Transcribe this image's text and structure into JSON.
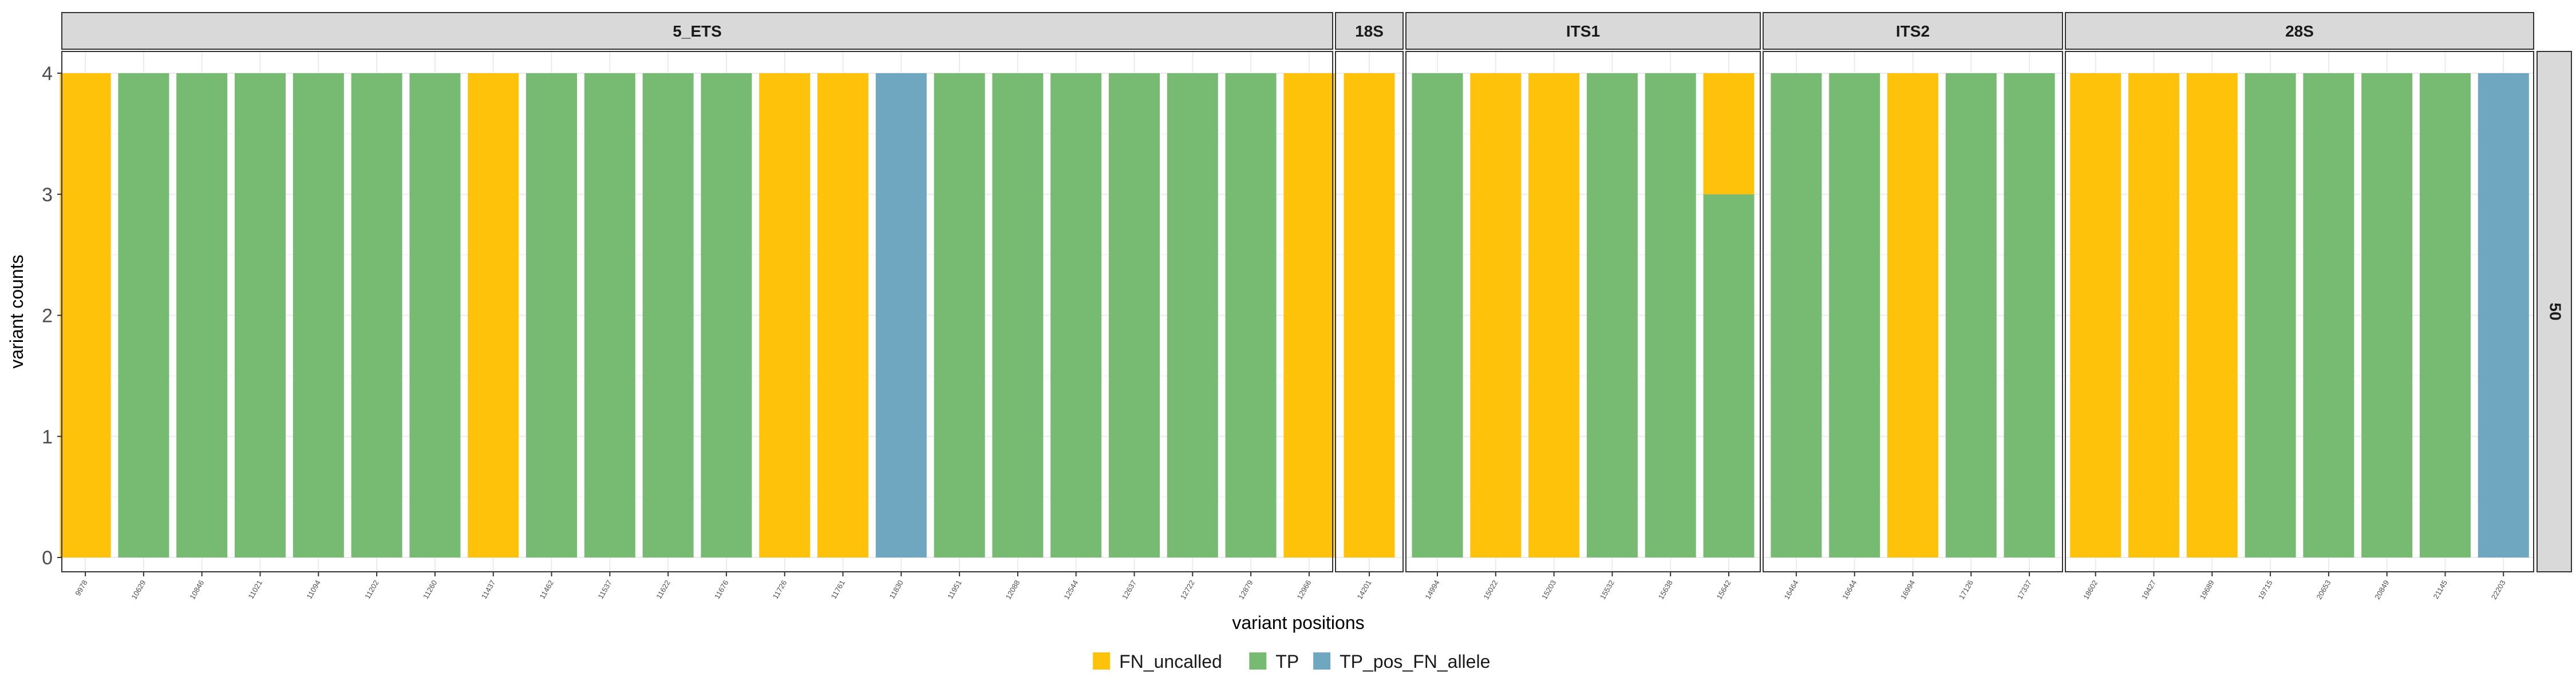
{
  "chart_data": {
    "type": "bar",
    "stacked": true,
    "xlabel": "variant positions",
    "ylabel": "variant counts",
    "ylim": [
      0,
      4
    ],
    "yticks": [
      0,
      1,
      2,
      3,
      4
    ],
    "row_label": "50",
    "grid": true,
    "legend_position": "bottom",
    "series": [
      {
        "name": "FN_uncalled",
        "color": "#FFC20A"
      },
      {
        "name": "TP",
        "color": "#77BB73"
      },
      {
        "name": "TP_pos_FN_allele",
        "color": "#6FA7C0"
      }
    ],
    "panels": [
      {
        "label": "5_ETS",
        "categories": [
          "9978",
          "10629",
          "10846",
          "11021",
          "11094",
          "11202",
          "11260",
          "11437",
          "11462",
          "11537",
          "11622",
          "11676",
          "11726",
          "11761",
          "11830",
          "11951",
          "12088",
          "12544",
          "12637",
          "12722",
          "12879",
          "12966"
        ],
        "bars": [
          {
            "FN_uncalled": 4
          },
          {
            "TP": 4
          },
          {
            "TP": 4
          },
          {
            "TP": 4
          },
          {
            "TP": 4
          },
          {
            "TP": 4
          },
          {
            "TP": 4
          },
          {
            "FN_uncalled": 4
          },
          {
            "TP": 4
          },
          {
            "TP": 4
          },
          {
            "TP": 4
          },
          {
            "TP": 4
          },
          {
            "FN_uncalled": 4
          },
          {
            "FN_uncalled": 4
          },
          {
            "TP_pos_FN_allele": 4
          },
          {
            "TP": 4
          },
          {
            "TP": 4
          },
          {
            "TP": 4
          },
          {
            "TP": 4
          },
          {
            "TP": 4
          },
          {
            "TP": 4
          },
          {
            "FN_uncalled": 4
          }
        ]
      },
      {
        "label": "18S",
        "categories": [
          "14201"
        ],
        "bars": [
          {
            "FN_uncalled": 4
          }
        ]
      },
      {
        "label": "ITS1",
        "categories": [
          "14994",
          "15022",
          "15203",
          "15532",
          "15638",
          "15642"
        ],
        "bars": [
          {
            "TP": 4
          },
          {
            "FN_uncalled": 4
          },
          {
            "FN_uncalled": 4
          },
          {
            "TP": 4
          },
          {
            "TP": 4
          },
          {
            "TP": 3,
            "FN_uncalled": 1
          }
        ]
      },
      {
        "label": "ITS2",
        "categories": [
          "16464",
          "16644",
          "16994",
          "17126",
          "17337"
        ],
        "bars": [
          {
            "TP": 4
          },
          {
            "TP": 4
          },
          {
            "FN_uncalled": 4
          },
          {
            "TP": 4
          },
          {
            "TP": 4
          }
        ]
      },
      {
        "label": "28S",
        "categories": [
          "18602",
          "19427",
          "19689",
          "19715",
          "20653",
          "20849",
          "21145",
          "22203"
        ],
        "bars": [
          {
            "FN_uncalled": 4
          },
          {
            "FN_uncalled": 4
          },
          {
            "FN_uncalled": 4
          },
          {
            "TP": 4
          },
          {
            "TP": 4
          },
          {
            "TP": 4
          },
          {
            "TP": 4
          },
          {
            "TP_pos_FN_allele": 4
          }
        ]
      }
    ]
  }
}
